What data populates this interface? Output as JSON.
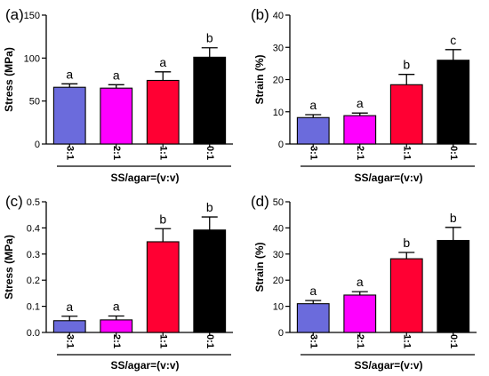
{
  "chart_data": [
    {
      "type": "bar",
      "panel_label": "(a)",
      "ylabel": "Stress (MPa)",
      "xlabel": "SS/agar=(v:v)",
      "ylim": [
        0,
        150
      ],
      "yticks": [
        "0",
        "50",
        "100",
        "150"
      ],
      "categories": [
        "3:1",
        "2:1",
        "1:1",
        "0:1"
      ],
      "values": [
        66,
        65,
        74,
        101
      ],
      "errors": [
        4,
        4,
        10,
        11
      ],
      "significance": [
        "a",
        "a",
        "a",
        "b"
      ],
      "colors": [
        "#6b6bdc",
        "#ff00ff",
        "#ff0033",
        "#000000"
      ]
    },
    {
      "type": "bar",
      "panel_label": "(b)",
      "ylabel": "Strain (%)",
      "xlabel": "SS/agar=(v:v)",
      "ylim": [
        0,
        40
      ],
      "yticks": [
        "0",
        "10",
        "20",
        "30",
        "40"
      ],
      "categories": [
        "3:1",
        "2:1",
        "1:1",
        "0:1"
      ],
      "values": [
        8.2,
        8.8,
        18.4,
        26
      ],
      "errors": [
        0.9,
        0.8,
        3.2,
        3.3
      ],
      "significance": [
        "a",
        "a",
        "b",
        "c"
      ],
      "colors": [
        "#6b6bdc",
        "#ff00ff",
        "#ff0033",
        "#000000"
      ]
    },
    {
      "type": "bar",
      "panel_label": "(c)",
      "ylabel": "Stress (MPa)",
      "xlabel": "SS/agar=(v:v)",
      "ylim": [
        0,
        0.5
      ],
      "yticks": [
        "0.0",
        "0.1",
        "0.2",
        "0.3",
        "0.4",
        "0.5"
      ],
      "categories": [
        "3:1",
        "2:1",
        "1:1",
        "0:1"
      ],
      "values": [
        0.045,
        0.048,
        0.347,
        0.392
      ],
      "errors": [
        0.017,
        0.015,
        0.05,
        0.05
      ],
      "significance": [
        "a",
        "a",
        "b",
        "b"
      ],
      "colors": [
        "#6b6bdc",
        "#ff00ff",
        "#ff0033",
        "#000000"
      ]
    },
    {
      "type": "bar",
      "panel_label": "(d)",
      "ylabel": "Strain (%)",
      "xlabel": "SS/agar=(v:v)",
      "ylim": [
        0,
        50
      ],
      "yticks": [
        "0",
        "10",
        "20",
        "30",
        "40",
        "50"
      ],
      "categories": [
        "3:1",
        "2:1",
        "1:1",
        "0:1"
      ],
      "values": [
        11,
        14.3,
        28.2,
        35.2
      ],
      "errors": [
        1.2,
        1.3,
        2.4,
        5
      ],
      "significance": [
        "a",
        "a",
        "b",
        "b"
      ],
      "colors": [
        "#6b6bdc",
        "#ff00ff",
        "#ff0033",
        "#000000"
      ]
    }
  ]
}
